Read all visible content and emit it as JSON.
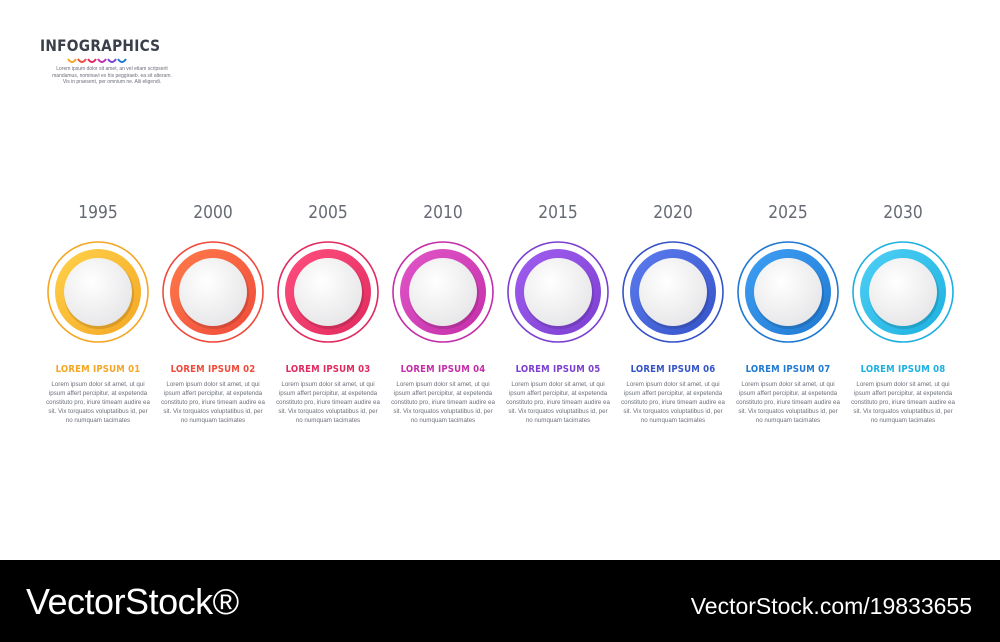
{
  "brand": {
    "title": "INFOGRAPHICS",
    "text": "Lorem ipsum dolor sit amet, an vel etiam scripserit mandamus, nominavi ex his peggiraeb. ea sit alteram. Vis in praesent, per omnium ne. Alii eligendi."
  },
  "timeline": {
    "steps": [
      {
        "year": "1995",
        "label": "LOREM IPSUM 01",
        "desc": "Lorem ipsum dolor sit amet, ut qui ipsum affert percipitur, at expetenda constituto pro, iriure timeam audire ea sit. Vix torquatos voluptatibus id, per no numquam tacimates",
        "color": "#f5a623",
        "color2": "#ffd24a"
      },
      {
        "year": "2000",
        "label": "LOREM IPSUM 02",
        "desc": "Lorem ipsum dolor sit amet, ut qui ipsum affert percipitur, at expetenda constituto pro, iriure timeam audire ea sit. Vix torquatos voluptatibus id, per no numquam tacimates",
        "color": "#ef4a3a",
        "color2": "#ff7b4a"
      },
      {
        "year": "2005",
        "label": "LOREM IPSUM 03",
        "desc": "Lorem ipsum dolor sit amet, ut qui ipsum affert percipitur, at expetenda constituto pro, iriure timeam audire ea sit. Vix torquatos voluptatibus id, per no numquam tacimates",
        "color": "#e02a5f",
        "color2": "#ff4f7e"
      },
      {
        "year": "2010",
        "label": "LOREM IPSUM 04",
        "desc": "Lorem ipsum dolor sit amet, ut qui ipsum affert percipitur, at expetenda constituto pro, iriure timeam audire ea sit. Vix torquatos voluptatibus id, per no numquam tacimates",
        "color": "#c42ea8",
        "color2": "#e157c9"
      },
      {
        "year": "2015",
        "label": "LOREM IPSUM 05",
        "desc": "Lorem ipsum dolor sit amet, ut qui ipsum affert percipitur, at expetenda constituto pro, iriure timeam audire ea sit. Vix torquatos voluptatibus id, per no numquam tacimates",
        "color": "#7b3fd1",
        "color2": "#a15ef0"
      },
      {
        "year": "2020",
        "label": "LOREM IPSUM 06",
        "desc": "Lorem ipsum dolor sit amet, ut qui ipsum affert percipitur, at expetenda constituto pro, iriure timeam audire ea sit. Vix torquatos voluptatibus id, per no numquam tacimates",
        "color": "#3553c8",
        "color2": "#5c7cf0"
      },
      {
        "year": "2025",
        "label": "LOREM IPSUM 07",
        "desc": "Lorem ipsum dolor sit amet, ut qui ipsum affert percipitur, at expetenda constituto pro, iriure timeam audire ea sit. Vix torquatos voluptatibus id, per no numquam tacimates",
        "color": "#1f78d1",
        "color2": "#3fa0f5"
      },
      {
        "year": "2030",
        "label": "LOREM IPSUM 08",
        "desc": "Lorem ipsum dolor sit amet, ut qui ipsum affert percipitur, at expetenda constituto pro, iriure timeam audire ea sit. Vix torquatos voluptatibus id, per no numquam tacimates",
        "color": "#1cb0e0",
        "color2": "#4fd0f5"
      }
    ]
  },
  "footer": {
    "left": "VectorStock®",
    "right": "VectorStock.com/19833655"
  }
}
